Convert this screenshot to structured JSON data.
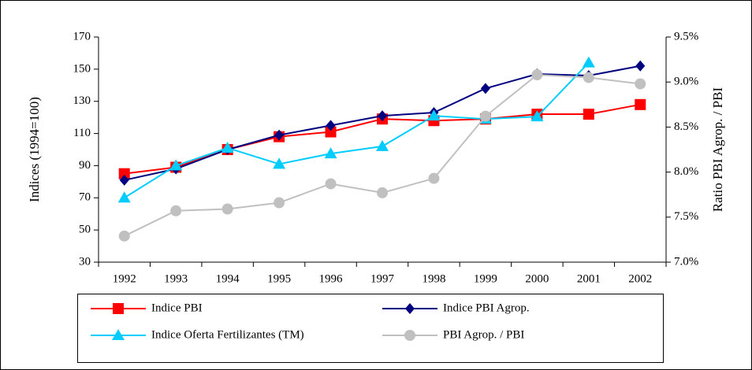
{
  "chart_data": {
    "type": "line",
    "ylabel": "Indices (1994=100)",
    "y2label": "Ratio PBI Agrop. / PBI",
    "categories": [
      "1992",
      "1993",
      "1994",
      "1995",
      "1996",
      "1997",
      "1998",
      "1999",
      "2000",
      "2001",
      "2002"
    ],
    "ylim": [
      30,
      170
    ],
    "yticks": [
      30,
      50,
      70,
      90,
      110,
      130,
      150,
      170
    ],
    "y2lim": [
      7.0,
      9.5
    ],
    "y2ticks": [
      {
        "value": 7.0,
        "label": "7.0%"
      },
      {
        "value": 7.5,
        "label": "7.5%"
      },
      {
        "value": 8.0,
        "label": "8.0%"
      },
      {
        "value": 8.5,
        "label": "8.5%"
      },
      {
        "value": 9.0,
        "label": "9.0%"
      },
      {
        "value": 9.5,
        "label": "9.5%"
      }
    ],
    "series": [
      {
        "name": "Indice PBI",
        "color": "#ff0000",
        "marker": "square",
        "values": [
          85,
          89,
          100,
          108,
          111,
          119,
          118,
          119,
          122,
          122,
          128
        ]
      },
      {
        "name": "Indice PBI Agrop.",
        "color": "#000080",
        "marker": "diamond",
        "values": [
          81,
          88,
          100,
          109,
          115,
          121,
          123,
          138,
          147,
          146,
          152
        ]
      },
      {
        "name": "Indice Oferta Fertilizantes (TM)",
        "color": "#00ccff",
        "marker": "triangle",
        "values": [
          70,
          90,
          101,
          91,
          97.5,
          102,
          121,
          119,
          120.5,
          154,
          null
        ]
      },
      {
        "name": "PBI Agrop. / PBI",
        "color": "#c0c0c0",
        "marker": "circle",
        "axis": "y2",
        "values": [
          7.29,
          7.57,
          7.59,
          7.66,
          7.87,
          7.77,
          7.93,
          8.62,
          9.08,
          9.05,
          8.98
        ]
      }
    ]
  }
}
